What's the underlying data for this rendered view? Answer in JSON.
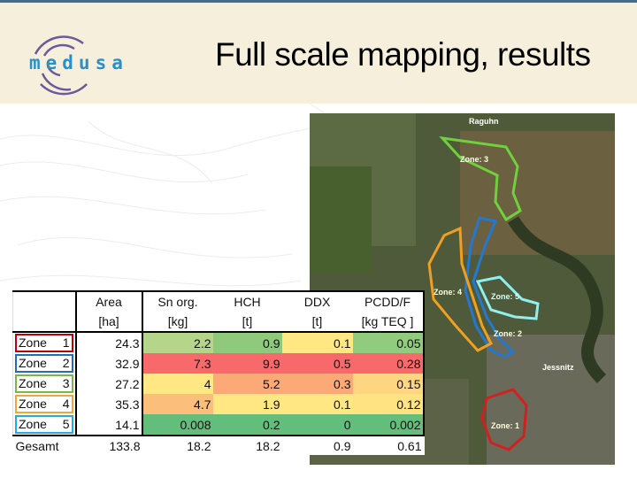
{
  "header": {
    "title": "Full scale mapping, results",
    "logo_text": "medusa"
  },
  "table": {
    "columns": [
      {
        "name": "Area",
        "unit": "[ha]"
      },
      {
        "name": "Sn org.",
        "unit": "[kg]"
      },
      {
        "name": "HCH",
        "unit": "[t]"
      },
      {
        "name": "DDX",
        "unit": "[t]"
      },
      {
        "name": "PCDD/F",
        "unit": "[kg TEQ ]"
      }
    ],
    "rows": [
      {
        "label": "Zone",
        "num": "1",
        "border": "#c00000",
        "values": [
          "24.3",
          "2.2",
          "0.9",
          "0.1",
          "0.05"
        ],
        "colors": [
          "#ffffff",
          "#b5d58a",
          "#8ec97c",
          "#ffe783",
          "#91cb7d"
        ]
      },
      {
        "label": "Zone",
        "num": "2",
        "border": "#1f6fb5",
        "values": [
          "32.9",
          "7.3",
          "9.9",
          "0.5",
          "0.28"
        ],
        "colors": [
          "#ffffff",
          "#f8696b",
          "#f8696b",
          "#f8696b",
          "#f8696b"
        ]
      },
      {
        "label": "Zone",
        "num": "3",
        "border": "#7ab648",
        "values": [
          "27.2",
          "4",
          "5.2",
          "0.3",
          "0.15"
        ],
        "colors": [
          "#ffffff",
          "#ffe783",
          "#fbaa77",
          "#fbaa77",
          "#fed580"
        ]
      },
      {
        "label": "Zone",
        "num": "4",
        "border": "#f0a830",
        "values": [
          "35.3",
          "4.7",
          "1.9",
          "0.1",
          "0.12"
        ],
        "colors": [
          "#ffffff",
          "#fcbf7b",
          "#ffe783",
          "#ffe783",
          "#ffe382"
        ]
      },
      {
        "label": "Zone",
        "num": "5",
        "border": "#29a9e0",
        "values": [
          "14.1",
          "0.008",
          "0.2",
          "0",
          "0.002"
        ],
        "colors": [
          "#ffffff",
          "#63be7b",
          "#63be7b",
          "#63be7b",
          "#63be7b"
        ]
      }
    ],
    "total": {
      "label": "Gesamt",
      "values": [
        "133.8",
        "18.2",
        "18.2",
        "0.9",
        "0.61"
      ]
    }
  },
  "map": {
    "labels": {
      "town1": "Raguhn",
      "town2": "Jessnitz",
      "z1": "Zone: 1",
      "z2": "Zone: 2",
      "z3": "Zone: 3",
      "z4": "Zone: 4",
      "z5": "Zone: 5"
    }
  }
}
